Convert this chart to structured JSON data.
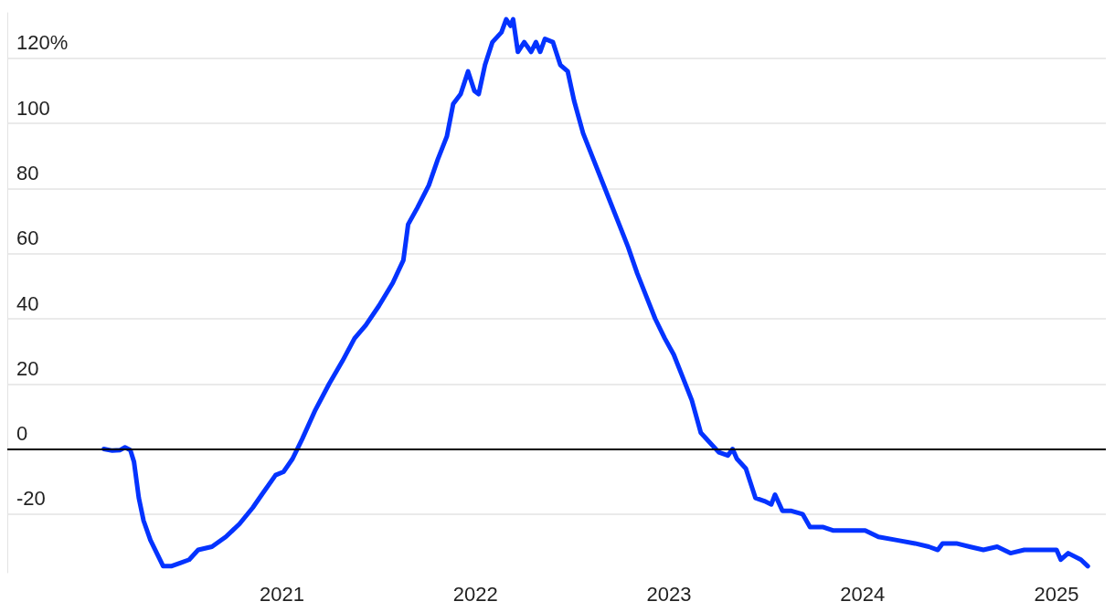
{
  "chart_data": {
    "type": "line",
    "x": [
      "2020-01-31",
      "2020-02-16",
      "2020-03-02",
      "2020-03-11",
      "2020-03-21",
      "2020-03-28",
      "2020-04-06",
      "2020-04-15",
      "2020-04-28",
      "2020-05-10",
      "2020-05-22",
      "2020-06-06",
      "2020-06-23",
      "2020-07-10",
      "2020-07-27",
      "2020-08-22",
      "2020-09-17",
      "2020-10-13",
      "2020-11-07",
      "2020-11-24",
      "2020-12-20",
      "2021-01-04",
      "2021-01-21",
      "2021-02-08",
      "2021-03-05",
      "2021-03-31",
      "2021-04-25",
      "2021-05-18",
      "2021-06-08",
      "2021-07-03",
      "2021-07-29",
      "2021-08-18",
      "2021-08-27",
      "2021-09-13",
      "2021-10-05",
      "2021-10-22",
      "2021-11-08",
      "2021-11-20",
      "2021-12-04",
      "2021-12-18",
      "2021-12-30",
      "2022-01-07",
      "2022-01-19",
      "2022-02-02",
      "2022-02-19",
      "2022-02-28",
      "2022-03-08",
      "2022-03-13",
      "2022-03-22",
      "2022-04-03",
      "2022-04-16",
      "2022-04-25",
      "2022-05-03",
      "2022-05-12",
      "2022-05-27",
      "2022-06-10",
      "2022-06-24",
      "2022-07-06",
      "2022-07-23",
      "2022-08-09",
      "2022-08-26",
      "2022-09-12",
      "2022-09-29",
      "2022-10-16",
      "2022-11-02",
      "2022-11-19",
      "2022-12-06",
      "2022-12-24",
      "2023-01-10",
      "2023-01-27",
      "2023-02-13",
      "2023-03-02",
      "2023-03-19",
      "2023-04-05",
      "2023-04-22",
      "2023-05-01",
      "2023-05-09",
      "2023-05-26",
      "2023-06-13",
      "2023-06-30",
      "2023-07-13",
      "2023-07-20",
      "2023-08-03",
      "2023-08-20",
      "2023-09-10",
      "2023-09-24",
      "2023-10-19",
      "2023-11-06",
      "2023-12-02",
      "2024-01-06",
      "2024-01-31",
      "2024-03-06",
      "2024-04-09",
      "2024-05-05",
      "2024-05-22",
      "2024-05-31",
      "2024-06-26",
      "2024-07-21",
      "2024-08-16",
      "2024-09-11",
      "2024-10-06",
      "2024-11-01",
      "2024-12-05",
      "2025-01-01",
      "2025-01-09",
      "2025-01-23",
      "2025-02-16",
      "2025-03-01"
    ],
    "series": [
      {
        "color": "#0433ff",
        "values": [
          0,
          -0.5,
          -0.3,
          0.5,
          -0.3,
          -4,
          -15,
          -22,
          -28,
          -32,
          -36,
          -36,
          -35,
          -34,
          -31,
          -30,
          -27,
          -23,
          -18,
          -14,
          -8,
          -7,
          -3,
          3,
          12,
          20,
          27,
          34,
          38,
          44,
          51,
          58,
          69,
          74,
          81,
          89,
          96,
          106,
          109,
          116,
          110,
          109,
          118,
          125,
          128,
          132,
          130,
          132,
          122,
          125,
          122,
          125,
          122,
          126,
          125,
          118,
          116,
          107,
          97,
          90,
          83,
          76,
          69,
          62,
          54,
          47,
          40,
          34,
          29,
          22,
          15,
          5,
          2,
          -1,
          -2,
          0,
          -3,
          -6,
          -15,
          -16,
          -17,
          -14,
          -19,
          -19,
          -20,
          -24,
          -24,
          -25,
          -25,
          -25,
          -27,
          -28,
          -29,
          -30,
          -31,
          -29,
          -29,
          -30,
          -31,
          -30,
          -32,
          -31,
          -31,
          -31,
          -34,
          -32,
          -34,
          -36
        ]
      }
    ],
    "xlim": [
      "2019-08-02",
      "2025-04-04"
    ],
    "xticks": [
      "2021",
      "2022",
      "2023",
      "2024",
      "2025"
    ],
    "ylim": [
      -38,
      134
    ],
    "yticks": [
      -20,
      0,
      20,
      40,
      60,
      80,
      100,
      {
        "value": 120,
        "label": "120%"
      }
    ],
    "grid": "y",
    "ref_lines": [
      {
        "axis": "y",
        "value": 0,
        "color": "#000000"
      }
    ],
    "line_style": "solid",
    "marker": "none"
  }
}
